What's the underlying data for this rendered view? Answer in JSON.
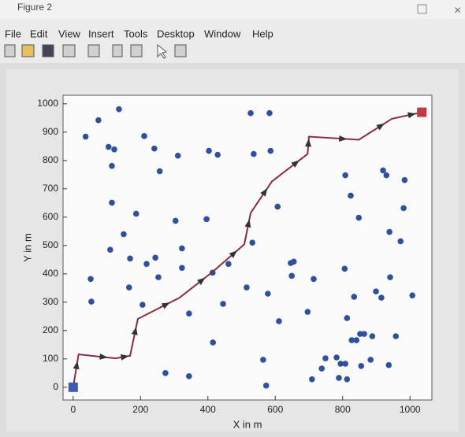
{
  "window": {
    "title": "Figure 2",
    "menu": [
      "File",
      "Edit",
      "View",
      "Insert",
      "Tools",
      "Desktop",
      "Window",
      "Help"
    ]
  },
  "chart_data": {
    "type": "scatter",
    "xlabel": "X in m",
    "ylabel": "Y in m",
    "xlim": [
      -30,
      1065
    ],
    "ylim": [
      -45,
      1030
    ],
    "xticks": [
      0,
      200,
      400,
      600,
      800,
      1000
    ],
    "yticks": [
      0,
      100,
      200,
      300,
      400,
      500,
      600,
      700,
      800,
      900,
      1000
    ],
    "series": [
      {
        "mode": "marker",
        "marker": "circle",
        "color": "#2f4f9f",
        "x": [
          136,
          75,
          37,
          105,
          122,
          115,
          211,
          241,
          311,
          257,
          403,
          429,
          536,
          527,
          583,
          586,
          115,
          187,
          150,
          110,
          169,
          218,
          244,
          253,
          304,
          396,
          323,
          323,
          52,
          54,
          166,
          206,
          344,
          445,
          461,
          414,
          532,
          515,
          578,
          607,
          611,
          564,
          573,
          415,
          344,
          274,
          646,
          655,
          649,
          714,
          696,
          709,
          738,
          749,
          782,
          794,
          808,
          789,
          813,
          808,
          824,
          848,
          806,
          834,
          813,
          827,
          841,
          852,
          864,
          855,
          888,
          883,
          920,
          930,
          984,
          981,
          939,
          972,
          941,
          899,
          915,
          937,
          958,
          1007
        ],
        "values": [
          981,
          942,
          884,
          848,
          839,
          781,
          886,
          842,
          817,
          762,
          834,
          820,
          823,
          967,
          967,
          834,
          651,
          612,
          540,
          485,
          454,
          435,
          457,
          388,
          587,
          593,
          490,
          421,
          382,
          302,
          352,
          291,
          260,
          294,
          435,
          404,
          510,
          352,
          330,
          637,
          233,
          97,
          6,
          158,
          39,
          50,
          438,
          443,
          393,
          382,
          266,
          28,
          66,
          102,
          105,
          83,
          83,
          33,
          28,
          748,
          676,
          598,
          418,
          319,
          244,
          166,
          166,
          188,
          188,
          75,
          180,
          97,
          765,
          748,
          731,
          632,
          548,
          515,
          388,
          338,
          316,
          78,
          180,
          324
        ]
      },
      {
        "mode": "line",
        "color": "#8b2c3c",
        "x": [
          0,
          16,
          126,
          169,
          192,
          316,
          414,
          508,
          527,
          590,
          696,
          700,
          848,
          946,
          1035
        ],
        "values": [
          0,
          116,
          102,
          111,
          241,
          316,
          407,
          504,
          615,
          726,
          823,
          884,
          873,
          947,
          970
        ]
      },
      {
        "mode": "marker",
        "marker": "square",
        "color": "#3d5bb0",
        "x": [
          0
        ],
        "values": [
          0
        ]
      },
      {
        "mode": "marker",
        "marker": "square",
        "color": "#c0394a",
        "x": [
          1035
        ],
        "values": [
          970
        ]
      }
    ]
  }
}
